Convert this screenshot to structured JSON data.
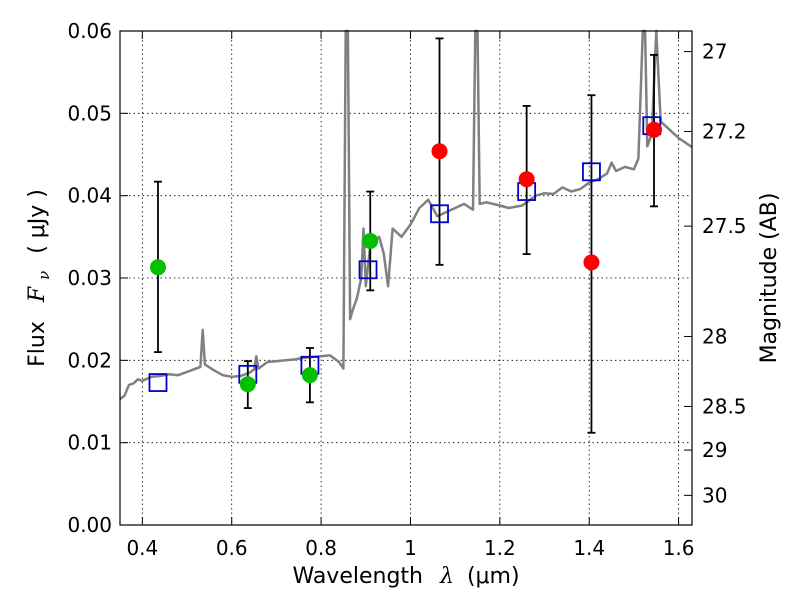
{
  "chart_data": {
    "type": "scatter",
    "xlabel_main": "Wavelength",
    "xlabel_sym": "λ",
    "xlabel_unit": "(μm)",
    "ylabel_main": "Flux",
    "ylabel_sym": "F",
    "ylabel_sub": "ν",
    "ylabel_unit": "( μJy )",
    "y2label": "Magnitude (AB)",
    "xlim": [
      0.35,
      1.63
    ],
    "ylim": [
      0.0,
      0.06
    ],
    "xticks": [
      0.4,
      0.6,
      0.8,
      1.0,
      1.2,
      1.4,
      1.6
    ],
    "xtick_labels": [
      "0.4",
      "0.6",
      "0.8",
      "1",
      "1.2",
      "1.4",
      "1.6"
    ],
    "yticks": [
      0.0,
      0.01,
      0.02,
      0.03,
      0.04,
      0.05,
      0.06
    ],
    "ytick_labels": [
      "0.00",
      "0.01",
      "0.02",
      "0.03",
      "0.04",
      "0.05",
      "0.06"
    ],
    "y2ticks": [
      {
        "label": "27",
        "flux": 0.0575
      },
      {
        "label": "27.2",
        "flux": 0.0478
      },
      {
        "label": "27.5",
        "flux": 0.0363
      },
      {
        "label": "28",
        "flux": 0.0229
      },
      {
        "label": "28.5",
        "flux": 0.0144
      },
      {
        "label": "29",
        "flux": 0.0091
      },
      {
        "label": "30",
        "flux": 0.0036
      }
    ],
    "grid": true,
    "colors": {
      "green": "#00c000",
      "red": "#ff0000",
      "model_box": "#0000cc",
      "sed": "#808080",
      "errorbar": "#000000"
    },
    "observed_green": [
      {
        "x": 0.435,
        "y": 0.0313,
        "ylo": 0.021,
        "yhi": 0.0417
      },
      {
        "x": 0.636,
        "y": 0.0171,
        "ylo": 0.0142,
        "yhi": 0.0199
      },
      {
        "x": 0.775,
        "y": 0.0182,
        "ylo": 0.0149,
        "yhi": 0.0215
      },
      {
        "x": 0.91,
        "y": 0.0345,
        "ylo": 0.0285,
        "yhi": 0.0405
      }
    ],
    "observed_red": [
      {
        "x": 1.065,
        "y": 0.0454,
        "ylo": 0.0316,
        "yhi": 0.0591
      },
      {
        "x": 1.26,
        "y": 0.042,
        "ylo": 0.0329,
        "yhi": 0.0509
      },
      {
        "x": 1.405,
        "y": 0.0319,
        "ylo": 0.0112,
        "yhi": 0.0522
      },
      {
        "x": 1.545,
        "y": 0.048,
        "ylo": 0.0387,
        "yhi": 0.0571
      }
    ],
    "model_photometry": [
      {
        "x": 0.435,
        "y": 0.0173
      },
      {
        "x": 0.636,
        "y": 0.0183
      },
      {
        "x": 0.775,
        "y": 0.0194
      },
      {
        "x": 0.905,
        "y": 0.031
      },
      {
        "x": 1.065,
        "y": 0.0378
      },
      {
        "x": 1.26,
        "y": 0.0405
      },
      {
        "x": 1.405,
        "y": 0.0429
      },
      {
        "x": 1.54,
        "y": 0.0485
      }
    ],
    "sed_curve": [
      [
        0.35,
        0.0153
      ],
      [
        0.36,
        0.0157
      ],
      [
        0.37,
        0.017
      ],
      [
        0.38,
        0.0172
      ],
      [
        0.39,
        0.0177
      ],
      [
        0.4,
        0.0175
      ],
      [
        0.42,
        0.018
      ],
      [
        0.44,
        0.0181
      ],
      [
        0.46,
        0.0183
      ],
      [
        0.48,
        0.0182
      ],
      [
        0.5,
        0.0186
      ],
      [
        0.52,
        0.019
      ],
      [
        0.53,
        0.0192
      ],
      [
        0.535,
        0.0237
      ],
      [
        0.54,
        0.0195
      ],
      [
        0.56,
        0.0188
      ],
      [
        0.58,
        0.0182
      ],
      [
        0.6,
        0.018
      ],
      [
        0.62,
        0.0181
      ],
      [
        0.64,
        0.0185
      ],
      [
        0.65,
        0.0189
      ],
      [
        0.655,
        0.0205
      ],
      [
        0.66,
        0.019
      ],
      [
        0.68,
        0.0198
      ],
      [
        0.7,
        0.0199
      ],
      [
        0.72,
        0.02
      ],
      [
        0.74,
        0.0201
      ],
      [
        0.76,
        0.0203
      ],
      [
        0.78,
        0.0204
      ],
      [
        0.8,
        0.0205
      ],
      [
        0.82,
        0.0206
      ],
      [
        0.84,
        0.0198
      ],
      [
        0.85,
        0.019
      ],
      [
        0.855,
        0.062
      ],
      [
        0.86,
        0.062
      ],
      [
        0.865,
        0.025
      ],
      [
        0.87,
        0.026
      ],
      [
        0.88,
        0.0275
      ],
      [
        0.89,
        0.03
      ],
      [
        0.895,
        0.036
      ],
      [
        0.9,
        0.029
      ],
      [
        0.91,
        0.034
      ],
      [
        0.93,
        0.035
      ],
      [
        0.94,
        0.033
      ],
      [
        0.95,
        0.029
      ],
      [
        0.96,
        0.036
      ],
      [
        0.98,
        0.035
      ],
      [
        1.0,
        0.0365
      ],
      [
        1.02,
        0.0385
      ],
      [
        1.04,
        0.0395
      ],
      [
        1.06,
        0.0375
      ],
      [
        1.08,
        0.038
      ],
      [
        1.1,
        0.0385
      ],
      [
        1.12,
        0.039
      ],
      [
        1.14,
        0.0383
      ],
      [
        1.145,
        0.062
      ],
      [
        1.15,
        0.062
      ],
      [
        1.155,
        0.039
      ],
      [
        1.17,
        0.0392
      ],
      [
        1.2,
        0.0388
      ],
      [
        1.22,
        0.0385
      ],
      [
        1.25,
        0.0388
      ],
      [
        1.28,
        0.04
      ],
      [
        1.3,
        0.0403
      ],
      [
        1.32,
        0.0402
      ],
      [
        1.34,
        0.041
      ],
      [
        1.36,
        0.0405
      ],
      [
        1.38,
        0.0408
      ],
      [
        1.4,
        0.0416
      ],
      [
        1.42,
        0.042
      ],
      [
        1.44,
        0.0427
      ],
      [
        1.45,
        0.044
      ],
      [
        1.46,
        0.043
      ],
      [
        1.48,
        0.0435
      ],
      [
        1.5,
        0.0432
      ],
      [
        1.51,
        0.0445
      ],
      [
        1.52,
        0.062
      ],
      [
        1.525,
        0.062
      ],
      [
        1.53,
        0.046
      ],
      [
        1.54,
        0.0475
      ],
      [
        1.55,
        0.062
      ],
      [
        1.56,
        0.049
      ],
      [
        1.58,
        0.048
      ],
      [
        1.6,
        0.047
      ],
      [
        1.63,
        0.0459
      ]
    ]
  }
}
